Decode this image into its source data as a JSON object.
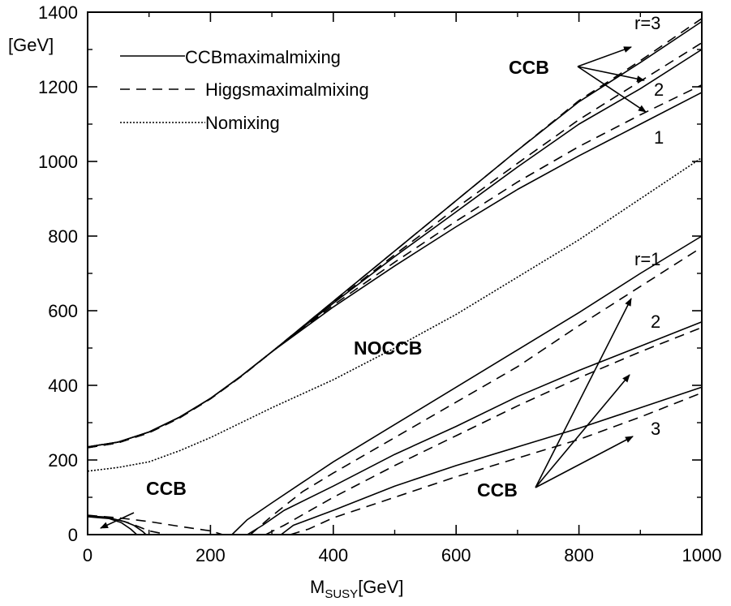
{
  "chart_data": {
    "type": "line",
    "title": "",
    "xlabel": {
      "main": "M",
      "sub": "SUSY",
      "unit": "[GeV]"
    },
    "ylabel": "[GeV]",
    "xlim": [
      0,
      1000
    ],
    "ylim": [
      0,
      1400
    ],
    "xticks": [
      "0",
      "200",
      "400",
      "600",
      "800",
      "1000"
    ],
    "yticks": [
      "0",
      "200",
      "400",
      "600",
      "800",
      "1000",
      "1200",
      "1400"
    ],
    "grid": false,
    "legend_position": "top-left",
    "legend": [
      {
        "label": "CCBmaximalmixing",
        "style": "solid"
      },
      {
        "label": "Higgsmaximalmixing",
        "style": "dashed"
      },
      {
        "label": "Nomixing",
        "style": "dotted"
      }
    ],
    "series": [
      {
        "style": "solid",
        "points": [
          [
            0,
            235
          ],
          [
            50,
            248
          ],
          [
            100,
            275
          ],
          [
            150,
            315
          ],
          [
            200,
            365
          ],
          [
            250,
            425
          ],
          [
            300,
            490
          ],
          [
            400,
            625
          ],
          [
            500,
            760
          ],
          [
            600,
            895
          ],
          [
            700,
            1030
          ],
          [
            800,
            1160
          ],
          [
            900,
            1265
          ],
          [
            1000,
            1375
          ]
        ]
      },
      {
        "style": "dashed",
        "points": [
          [
            0,
            233
          ],
          [
            50,
            246
          ],
          [
            100,
            273
          ],
          [
            150,
            313
          ],
          [
            200,
            364
          ],
          [
            250,
            424
          ],
          [
            300,
            490
          ],
          [
            400,
            625
          ],
          [
            500,
            760
          ],
          [
            600,
            895
          ],
          [
            700,
            1030
          ],
          [
            800,
            1163
          ],
          [
            900,
            1270
          ],
          [
            1000,
            1383
          ]
        ]
      },
      {
        "style": "solid",
        "points": [
          [
            0,
            235
          ],
          [
            50,
            248
          ],
          [
            100,
            275
          ],
          [
            150,
            315
          ],
          [
            200,
            365
          ],
          [
            250,
            425
          ],
          [
            300,
            490
          ],
          [
            400,
            620
          ],
          [
            500,
            745
          ],
          [
            600,
            865
          ],
          [
            700,
            985
          ],
          [
            800,
            1100
          ],
          [
            900,
            1195
          ],
          [
            1000,
            1300
          ]
        ]
      },
      {
        "style": "dashed",
        "points": [
          [
            0,
            233
          ],
          [
            50,
            246
          ],
          [
            100,
            273
          ],
          [
            150,
            313
          ],
          [
            200,
            364
          ],
          [
            250,
            424
          ],
          [
            300,
            490
          ],
          [
            400,
            622
          ],
          [
            500,
            750
          ],
          [
            600,
            875
          ],
          [
            700,
            995
          ],
          [
            800,
            1112
          ],
          [
            900,
            1215
          ],
          [
            1000,
            1318
          ]
        ]
      },
      {
        "style": "solid",
        "points": [
          [
            0,
            235
          ],
          [
            50,
            248
          ],
          [
            100,
            275
          ],
          [
            150,
            315
          ],
          [
            200,
            365
          ],
          [
            250,
            425
          ],
          [
            300,
            490
          ],
          [
            400,
            610
          ],
          [
            500,
            720
          ],
          [
            600,
            825
          ],
          [
            700,
            925
          ],
          [
            800,
            1015
          ],
          [
            900,
            1100
          ],
          [
            1000,
            1185
          ]
        ]
      },
      {
        "style": "dashed",
        "points": [
          [
            0,
            233
          ],
          [
            50,
            246
          ],
          [
            100,
            273
          ],
          [
            150,
            313
          ],
          [
            200,
            364
          ],
          [
            250,
            424
          ],
          [
            300,
            490
          ],
          [
            400,
            615
          ],
          [
            500,
            730
          ],
          [
            600,
            840
          ],
          [
            700,
            945
          ],
          [
            800,
            1040
          ],
          [
            900,
            1125
          ],
          [
            1000,
            1205
          ]
        ]
      },
      {
        "style": "dotted",
        "points": [
          [
            0,
            170
          ],
          [
            50,
            180
          ],
          [
            100,
            195
          ],
          [
            150,
            225
          ],
          [
            200,
            260
          ],
          [
            250,
            300
          ],
          [
            300,
            340
          ],
          [
            400,
            415
          ],
          [
            500,
            500
          ],
          [
            600,
            590
          ],
          [
            700,
            690
          ],
          [
            800,
            790
          ],
          [
            900,
            900
          ],
          [
            1000,
            1010
          ]
        ]
      },
      {
        "style": "solid",
        "points": [
          [
            235,
            0
          ],
          [
            260,
            40
          ],
          [
            300,
            85
          ],
          [
            350,
            140
          ],
          [
            400,
            195
          ],
          [
            500,
            295
          ],
          [
            600,
            395
          ],
          [
            700,
            495
          ],
          [
            800,
            595
          ],
          [
            900,
            700
          ],
          [
            1000,
            800
          ]
        ]
      },
      {
        "style": "dashed",
        "points": [
          [
            265,
            0
          ],
          [
            300,
            50
          ],
          [
            350,
            115
          ],
          [
            400,
            165
          ],
          [
            500,
            260
          ],
          [
            600,
            355
          ],
          [
            700,
            450
          ],
          [
            800,
            560
          ],
          [
            900,
            665
          ],
          [
            1000,
            770
          ]
        ]
      },
      {
        "style": "solid",
        "points": [
          [
            260,
            0
          ],
          [
            285,
            25
          ],
          [
            320,
            65
          ],
          [
            400,
            130
          ],
          [
            500,
            215
          ],
          [
            600,
            290
          ],
          [
            700,
            370
          ],
          [
            800,
            440
          ],
          [
            900,
            505
          ],
          [
            1000,
            570
          ]
        ]
      },
      {
        "style": "dashed",
        "points": [
          [
            290,
            0
          ],
          [
            320,
            25
          ],
          [
            400,
            100
          ],
          [
            500,
            185
          ],
          [
            600,
            265
          ],
          [
            700,
            345
          ],
          [
            800,
            420
          ],
          [
            900,
            490
          ],
          [
            1000,
            555
          ]
        ]
      },
      {
        "style": "solid",
        "points": [
          [
            315,
            0
          ],
          [
            335,
            25
          ],
          [
            400,
            65
          ],
          [
            500,
            130
          ],
          [
            600,
            185
          ],
          [
            700,
            235
          ],
          [
            800,
            285
          ],
          [
            900,
            340
          ],
          [
            1000,
            395
          ]
        ]
      },
      {
        "style": "dashed",
        "points": [
          [
            330,
            0
          ],
          [
            360,
            15
          ],
          [
            400,
            45
          ],
          [
            500,
            100
          ],
          [
            600,
            155
          ],
          [
            700,
            205
          ],
          [
            800,
            255
          ],
          [
            900,
            315
          ],
          [
            1000,
            380
          ]
        ]
      },
      {
        "style": "solid",
        "points": [
          [
            0,
            50
          ],
          [
            30,
            47
          ],
          [
            60,
            35
          ],
          [
            75,
            25
          ],
          [
            90,
            8
          ],
          [
            95,
            0
          ]
        ]
      },
      {
        "style": "solid",
        "points": [
          [
            0,
            48
          ],
          [
            35,
            43
          ],
          [
            55,
            32
          ],
          [
            70,
            15
          ],
          [
            80,
            0
          ]
        ]
      },
      {
        "style": "dashed",
        "points": [
          [
            0,
            52
          ],
          [
            50,
            45
          ],
          [
            100,
            35
          ],
          [
            150,
            22
          ],
          [
            200,
            10
          ],
          [
            220,
            0
          ]
        ]
      },
      {
        "style": "dashed",
        "points": [
          [
            0,
            50
          ],
          [
            40,
            44
          ],
          [
            70,
            30
          ],
          [
            100,
            10
          ],
          [
            130,
            0
          ]
        ]
      }
    ],
    "annotations": {
      "upper_r3": "r=3",
      "upper_2": "2",
      "upper_1": "1",
      "lower_r1": "r=1",
      "lower_2": "2",
      "lower_3": "3",
      "ccb_upper": "CCB",
      "ccb_lower_right": "CCB",
      "ccb_lower_left": "CCB",
      "noccb": "NOCCB"
    }
  }
}
